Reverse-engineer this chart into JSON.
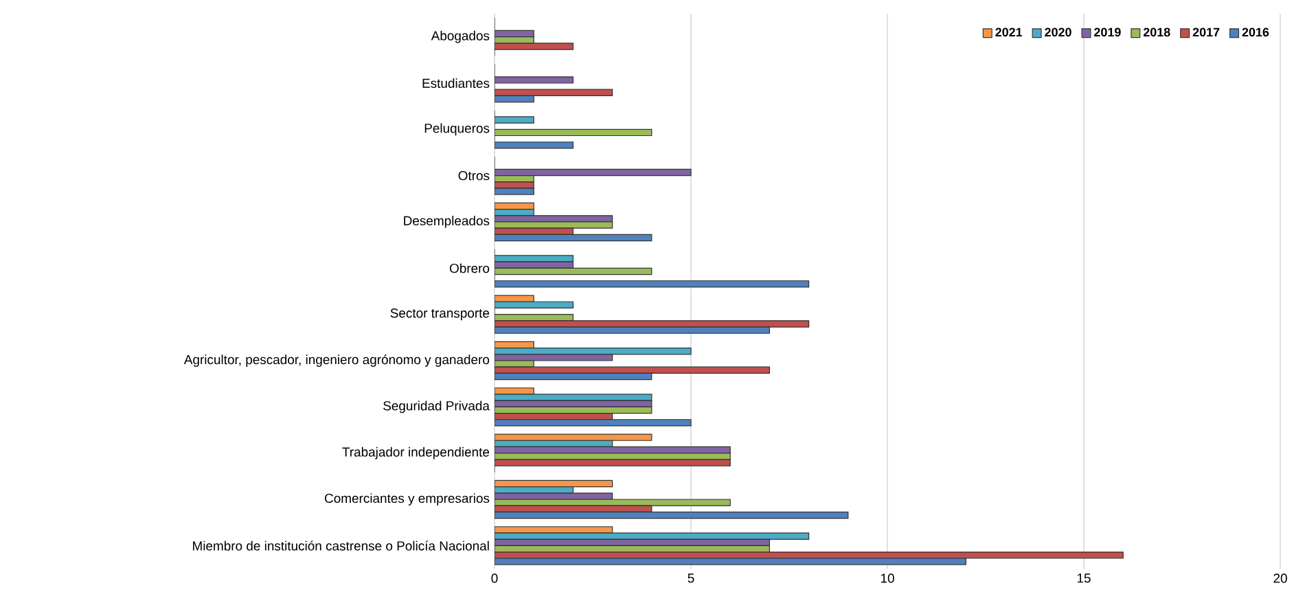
{
  "chart_data": {
    "type": "bar",
    "orientation": "horizontal",
    "categories": [
      "Abogados",
      "Estudiantes",
      "Peluqueros",
      "Otros",
      "Desempleados",
      "Obrero",
      "Sector transporte",
      "Agricultor, pescador, ingeniero agrónomo y ganadero",
      "Seguridad Privada",
      "Trabajador independiente",
      "Comerciantes y empresarios",
      "Miembro de institución castrense o Policía Nacional"
    ],
    "series": [
      {
        "name": "2021",
        "color": "#f79646",
        "values": [
          0,
          0,
          0,
          0,
          1,
          0,
          1,
          1,
          1,
          4,
          3,
          3
        ]
      },
      {
        "name": "2020",
        "color": "#4bacc6",
        "values": [
          0,
          0,
          1,
          0,
          1,
          2,
          2,
          5,
          4,
          3,
          2,
          8
        ]
      },
      {
        "name": "2019",
        "color": "#8064a2",
        "values": [
          1,
          2,
          0,
          5,
          3,
          2,
          0,
          3,
          4,
          6,
          3,
          7
        ]
      },
      {
        "name": "2018",
        "color": "#9bbb59",
        "values": [
          1,
          0,
          4,
          1,
          3,
          4,
          2,
          1,
          4,
          6,
          6,
          7
        ]
      },
      {
        "name": "2017",
        "color": "#c0504d",
        "values": [
          2,
          3,
          0,
          1,
          2,
          0,
          8,
          7,
          3,
          6,
          4,
          16
        ]
      },
      {
        "name": "2016",
        "color": "#4f81bd",
        "values": [
          0,
          1,
          2,
          1,
          4,
          8,
          7,
          4,
          5,
          0,
          9,
          12
        ]
      }
    ],
    "xlim": [
      0,
      20
    ],
    "xticks": [
      0,
      5,
      10,
      15,
      20
    ],
    "grid": "x",
    "legend": "top right"
  }
}
